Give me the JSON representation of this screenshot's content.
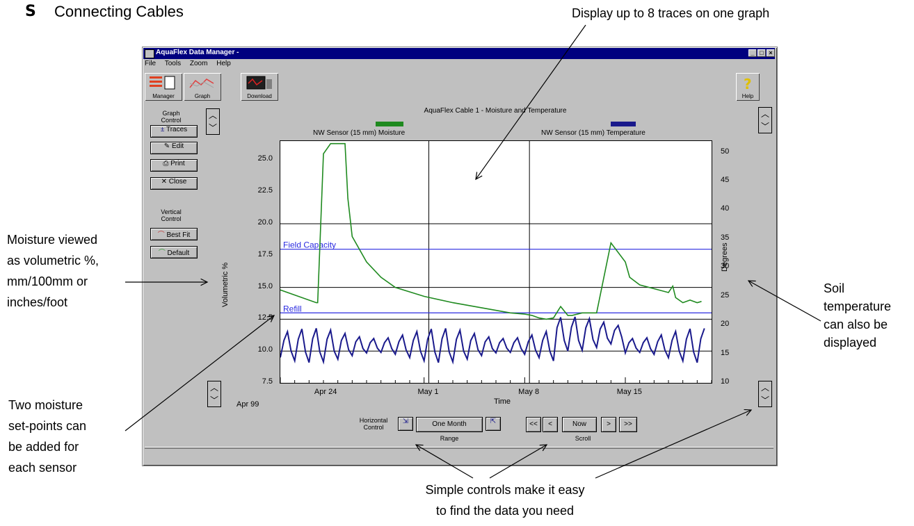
{
  "heading": {
    "bullet": "S",
    "title": "Connecting Cables"
  },
  "callouts": {
    "top": "Display up to 8 traces on one graph",
    "moisture": [
      "Moisture viewed",
      "as volumetric %,",
      "mm/100mm or",
      "inches/foot"
    ],
    "setpoints": [
      "Two moisture",
      "set-points can",
      "be added for",
      "each sensor"
    ],
    "soil_temp": [
      "Soil",
      "temperature",
      "can also be",
      "displayed"
    ],
    "controls": [
      "Simple controls make it easy",
      "to find the data you need"
    ]
  },
  "window": {
    "title": "AquaFlex Data Manager -",
    "menu": [
      "File",
      "Tools",
      "Zoom",
      "Help"
    ],
    "toolbar": [
      {
        "label": "Manager",
        "icon": "manager-icon"
      },
      {
        "label": "Graph",
        "icon": "graph-icon"
      },
      {
        "label": "Download",
        "icon": "download-icon"
      }
    ],
    "help_label": "Help"
  },
  "left_panel": {
    "graph_control_label": "Graph Control",
    "buttons": [
      "Traces",
      "Edit",
      "Print",
      "Close"
    ],
    "vertical_control_label": "Vertical Control",
    "vertical_buttons": [
      "Best Fit",
      "Default"
    ]
  },
  "chart_header": {
    "title": "AquaFlex Cable 1 - Moisture and Temperature",
    "legend_left": "NW Sensor (15 mm) Moisture",
    "legend_right": "NW Sensor (15 mm) Temperature",
    "colors": {
      "moisture": "#1f8a1f",
      "temperature": "#1a1a8c",
      "setpoint": "#2a2ae0"
    }
  },
  "bottom_controls": {
    "horizontal_control_label": "Horizontal Control",
    "range_label": "Range",
    "range_value": "One Month",
    "scroll_label": "Scroll",
    "scroll_buttons": [
      "<<",
      "<",
      "Now",
      ">",
      ">>"
    ],
    "start_label": "Apr 99"
  },
  "chart_data": {
    "type": "line",
    "title": "AquaFlex Cable 1 - Moisture and Temperature",
    "xlabel": "Time",
    "ylabel": "Volumetric %",
    "ylabel_right": "Degrees",
    "x_ticks": [
      "Apr 24",
      "May 1",
      "May 8",
      "May 15"
    ],
    "ylim": [
      7.5,
      26.5
    ],
    "y_ticks": [
      7.5,
      10.0,
      12.5,
      15.0,
      17.5,
      20.0,
      22.5,
      25.0
    ],
    "y2lim": [
      10,
      52
    ],
    "y2_ticks": [
      10,
      15,
      20,
      25,
      30,
      35,
      40,
      45,
      50
    ],
    "setpoints": [
      {
        "label": "Field Capacity",
        "value": 18.0
      },
      {
        "label": "Refill",
        "value": 13.0
      }
    ],
    "x_range_days": [
      0,
      30
    ],
    "series": [
      {
        "name": "NW Sensor (15 mm) Moisture",
        "x": [
          0,
          2.5,
          2.6,
          3,
          3.5,
          4.5,
          4.7,
          5,
          6,
          7,
          8,
          10,
          12,
          14,
          16,
          17,
          17.5,
          18,
          18.5,
          19,
          19.5,
          20,
          20.3,
          21,
          22,
          23,
          24,
          24.3,
          25,
          26,
          27,
          27.3,
          27.5,
          28,
          28.5,
          29,
          29.3
        ],
        "values": [
          14.8,
          13.8,
          13.8,
          25.5,
          26.3,
          26.3,
          22.0,
          19.0,
          17.0,
          15.8,
          15.0,
          14.3,
          13.8,
          13.4,
          13.0,
          12.9,
          12.8,
          12.6,
          12.5,
          12.6,
          13.5,
          12.8,
          12.8,
          13.0,
          13.0,
          18.5,
          17.0,
          15.8,
          15.2,
          14.9,
          14.6,
          15.1,
          14.2,
          13.8,
          14.0,
          13.8,
          13.9
        ]
      },
      {
        "name": "NW Sensor (15 mm) Temperature",
        "x": [
          0,
          30
        ],
        "values": [
          17,
          16
        ]
      }
    ]
  }
}
